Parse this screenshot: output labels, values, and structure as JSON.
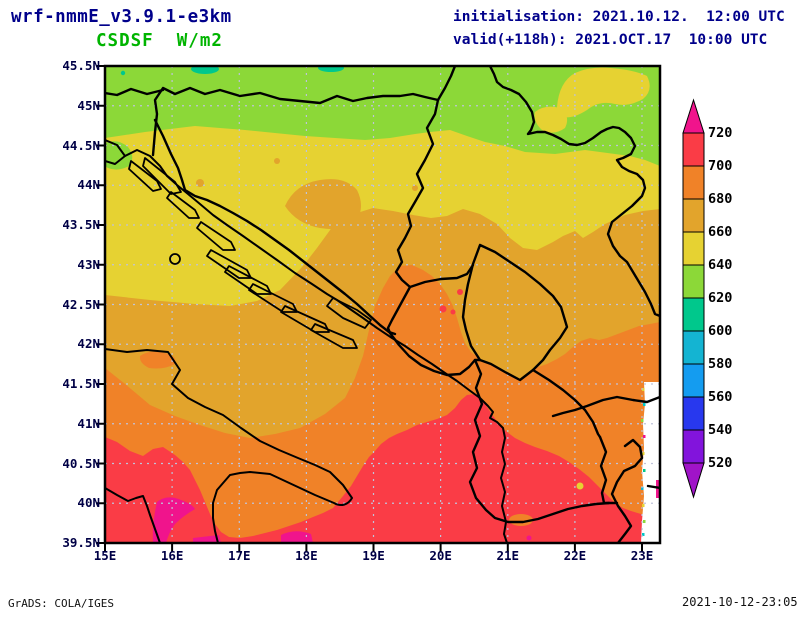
{
  "header": {
    "model": "wrf-nmmE_v3.9.1-e3km",
    "variable": "CSDSF  W/m2",
    "init_line": "initialisation: 2021.10.12.  12:00 UTC",
    "valid_line": "valid(+118h): 2021.OCT.17  10:00 UTC"
  },
  "field": {
    "name": "CSDSF",
    "units": "W/m2",
    "level_min": 520,
    "level_max": 720,
    "level_step": 20
  },
  "map": {
    "lat_labels": [
      "45.5N",
      "45N",
      "44.5N",
      "44N",
      "43.5N",
      "43N",
      "42.5N",
      "42N",
      "41.5N",
      "41N",
      "40.5N",
      "40N",
      "39.5N"
    ],
    "lon_labels": [
      "15E",
      "16E",
      "17E",
      "18E",
      "19E",
      "20E",
      "21E",
      "22E",
      "23E"
    ]
  },
  "colorbar": {
    "tick_labels": [
      "720",
      "700",
      "680",
      "660",
      "640",
      "620",
      "600",
      "580",
      "560",
      "540",
      "520"
    ],
    "segment_colors_top_to_bottom": [
      "#f0148c",
      "#fa3c46",
      "#f08228",
      "#e2a42c",
      "#e6d232",
      "#8cd838",
      "#00c88c",
      "#14b4d2",
      "#149cf0",
      "#2838ee",
      "#8214dc",
      "#a014c8"
    ]
  },
  "footer": {
    "left": "GrADS: COLA/IGES",
    "right": "2021-10-12-23:05"
  },
  "colors": {
    "title": "#00008b",
    "variable": "#00b400",
    "axis": "#000046",
    "graticule": "#bfc3da"
  }
}
